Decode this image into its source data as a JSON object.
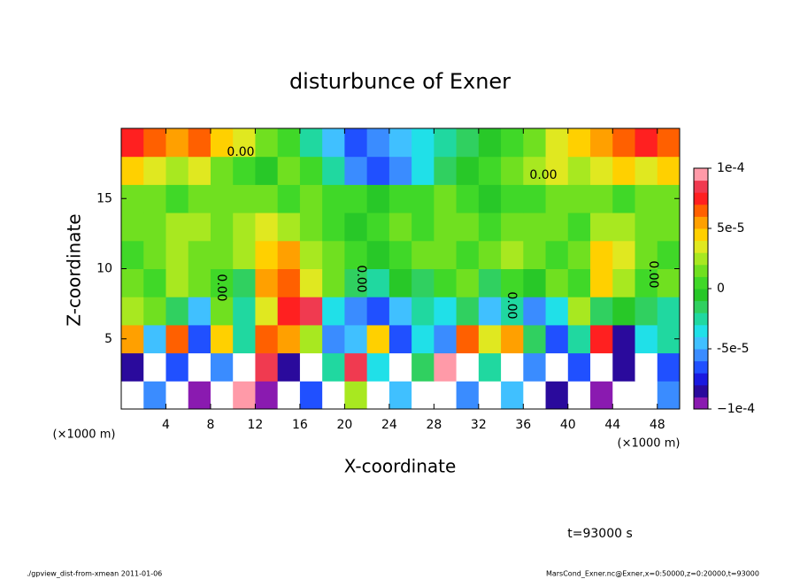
{
  "chart_data": {
    "type": "contour",
    "title": "disturbunce of Exner",
    "x_label": "X-coordinate",
    "y_label": "Z-coordinate",
    "x_unit_left": "(×1000 m)",
    "x_unit_right": "(×1000 m)",
    "time_label": "t=93000 s",
    "footer_left": "./gpview_dist-from-xmean  2011-01-06",
    "footer_right": "MarsCond_Exner.nc@Exner,x=0:50000,z=0:20000,t=93000",
    "contour_labels": [
      "0.00",
      "0.00",
      "0.00",
      "0.00",
      "0.00",
      "0.00"
    ],
    "xlim": [
      0,
      50
    ],
    "ylim": [
      0,
      20
    ],
    "xticks": [
      4,
      8,
      12,
      16,
      20,
      24,
      28,
      32,
      36,
      40,
      44,
      48
    ],
    "yticks": [
      5,
      10,
      15
    ],
    "zlim": [
      -0.0001,
      0.0001
    ],
    "zticks": [
      {
        "value": 0.0001,
        "label": "1e-4"
      },
      {
        "value": 5e-05,
        "label": "5e-5"
      },
      0,
      {
        "value": -5e-05,
        "label": "-5e-5"
      },
      {
        "value": -0.0001,
        "label": "−1e-4"
      }
    ],
    "colors": [
      "#8a1ab0",
      "#2a0a9c",
      "#1a1ae0",
      "#2050ff",
      "#3a8cff",
      "#40c0ff",
      "#20e0e8",
      "#20d8a0",
      "#30d060",
      "#28c828",
      "#40d828",
      "#70e020",
      "#a8e820",
      "#e0e820",
      "#ffd000",
      "#ffa000",
      "#ff6000",
      "#ff2020",
      "#f03a50",
      "#ff9aa8"
    ],
    "x": [
      1,
      3,
      5,
      7,
      9,
      11,
      13,
      15,
      17,
      19,
      21,
      23,
      25,
      27,
      29,
      31,
      33,
      35,
      37,
      39,
      41,
      43,
      45,
      47,
      49
    ],
    "y": [
      1,
      3,
      5,
      7,
      9,
      11,
      13,
      15,
      17,
      19
    ],
    "z": [
      [
        0.00013,
        -6e-05,
        0.00012,
        -9e-05,
        0.00013,
        9e-05,
        -9e-05,
        0.00013,
        -7e-05,
        0.00013,
        2e-05,
        0.00013,
        -5e-05,
        0.00013,
        0.00013,
        -6e-05,
        0.00013,
        -5e-05,
        0.00013,
        -8e-05,
        0.00012,
        -9e-05,
        0.00013,
        0.00013,
        -6e-05
      ],
      [
        -8e-05,
        0.00012,
        -7e-05,
        0.00011,
        -6e-05,
        0.00012,
        8e-05,
        -8e-05,
        0.00012,
        -3e-05,
        8e-05,
        -4e-05,
        0.00012,
        -2e-05,
        9e-05,
        0.00011,
        -3e-05,
        0.00012,
        -6e-05,
        0.00011,
        -7e-05,
        0.00012,
        -8e-05,
        0.00011,
        -7e-05
      ],
      [
        5e-05,
        -5e-05,
        6e-05,
        -7e-05,
        4e-05,
        -3e-05,
        6e-05,
        5e-05,
        2e-05,
        -6e-05,
        -5e-05,
        4e-05,
        -7e-05,
        -4e-05,
        -6e-05,
        6e-05,
        3e-05,
        5e-05,
        -2e-05,
        -7e-05,
        -3e-05,
        7e-05,
        -8e-05,
        -4e-05,
        -3e-05
      ],
      [
        2e-05,
        1e-05,
        -2e-05,
        -5e-05,
        1e-05,
        -3e-05,
        3e-05,
        7e-05,
        8e-05,
        -4e-05,
        -6e-05,
        -7e-05,
        -5e-05,
        -3e-05,
        -4e-05,
        -2e-05,
        -5e-05,
        -3e-05,
        -6e-05,
        -4e-05,
        2e-05,
        -2e-05,
        -1e-05,
        -2e-05,
        -3e-05
      ],
      [
        1e-05,
        0,
        2e-05,
        1e-05,
        0,
        -2e-05,
        5e-05,
        6e-05,
        3e-05,
        1e-05,
        -2e-05,
        -3e-05,
        -1e-05,
        -2e-05,
        0,
        1e-05,
        -2e-05,
        0,
        -1e-05,
        1e-05,
        0,
        4e-05,
        2e-05,
        0,
        1e-05
      ],
      [
        0,
        1e-05,
        2e-05,
        1e-05,
        1e-05,
        2e-05,
        4e-05,
        5e-05,
        2e-05,
        1e-05,
        0,
        -1e-05,
        0,
        1e-05,
        1e-05,
        0,
        1e-05,
        2e-05,
        1e-05,
        0,
        1e-05,
        4e-05,
        3e-05,
        1e-05,
        0
      ],
      [
        1e-05,
        1e-05,
        2e-05,
        2e-05,
        1e-05,
        2e-05,
        3e-05,
        2e-05,
        1e-05,
        0,
        -1e-05,
        0,
        1e-05,
        0,
        1e-05,
        1e-05,
        0,
        1e-05,
        1e-05,
        1e-05,
        0,
        2e-05,
        2e-05,
        1e-05,
        1e-05
      ],
      [
        1e-05,
        1e-05,
        0,
        1e-05,
        1e-05,
        1e-05,
        1e-05,
        0,
        1e-05,
        0,
        0,
        -1e-05,
        0,
        0,
        1e-05,
        0,
        -1e-05,
        0,
        0,
        1e-05,
        1e-05,
        1e-05,
        0,
        1e-05,
        1e-05
      ],
      [
        4e-05,
        3e-05,
        2e-05,
        3e-05,
        1e-05,
        0,
        -1e-05,
        1e-05,
        0,
        -3e-05,
        -6e-05,
        -7e-05,
        -6e-05,
        -4e-05,
        -2e-05,
        -1e-05,
        0,
        1e-05,
        2e-05,
        3e-05,
        2e-05,
        3e-05,
        4e-05,
        3e-05,
        4e-05
      ],
      [
        7e-05,
        6e-05,
        5e-05,
        6e-05,
        4e-05,
        3e-05,
        1e-05,
        0,
        -3e-05,
        -5e-05,
        -7e-05,
        -6e-05,
        -5e-05,
        -4e-05,
        -3e-05,
        -2e-05,
        -1e-05,
        0,
        1e-05,
        3e-05,
        4e-05,
        5e-05,
        6e-05,
        7e-05,
        6e-05
      ]
    ]
  }
}
